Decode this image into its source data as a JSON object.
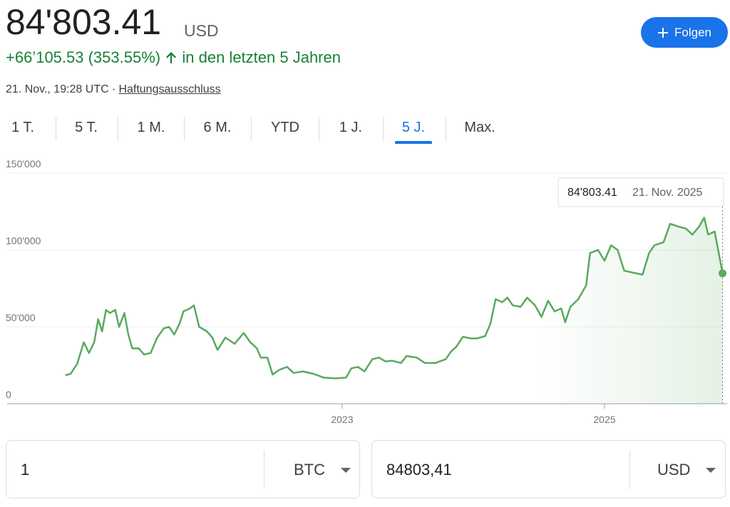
{
  "header": {
    "price": "84'803.41",
    "currency": "USD",
    "change": "+66’105.53 (353.55%)",
    "change_suffix": "in den letzten 5 Jahren",
    "timestamp": "21. Nov., 19:28 UTC ·",
    "disclaimer": "Haftungsausschluss",
    "follow": "Folgen"
  },
  "tabs": [
    "1 T.",
    "5 T.",
    "1 M.",
    "6 M.",
    "YTD",
    "1 J.",
    "5 J.",
    "Max."
  ],
  "active_tab": 6,
  "chart_data": {
    "type": "line",
    "color": "#5aa95e",
    "x": [
      2020.89,
      2020.93,
      2020.98,
      2021.03,
      2021.07,
      2021.11,
      2021.14,
      2021.17,
      2021.2,
      2021.23,
      2021.27,
      2021.3,
      2021.34,
      2021.37,
      2021.4,
      2021.45,
      2021.49,
      2021.54,
      2021.59,
      2021.64,
      2021.68,
      2021.72,
      2021.76,
      2021.79,
      2021.84,
      2021.87,
      2021.91,
      2021.97,
      2022.01,
      2022.05,
      2022.11,
      2022.18,
      2022.25,
      2022.3,
      2022.35,
      2022.38,
      2022.43,
      2022.47,
      2022.52,
      2022.58,
      2022.63,
      2022.7,
      2022.78,
      2022.86,
      2022.95,
      2023.03,
      2023.07,
      2023.12,
      2023.17,
      2023.23,
      2023.28,
      2023.33,
      2023.38,
      2023.45,
      2023.49,
      2023.57,
      2023.63,
      2023.71,
      2023.79,
      2023.83,
      2023.87,
      2023.92,
      2023.98,
      2024.03,
      2024.09,
      2024.13,
      2024.17,
      2024.22,
      2024.26,
      2024.3,
      2024.36,
      2024.41,
      2024.47,
      2024.52,
      2024.57,
      2024.62,
      2024.67,
      2024.7,
      2024.74,
      2024.8,
      2024.86,
      2024.89,
      2024.95,
      2025.0,
      2025.05,
      2025.1,
      2025.15,
      2025.23,
      2025.29,
      2025.34,
      2025.38,
      2025.45,
      2025.5,
      2025.57,
      2025.62,
      2025.67,
      2025.72,
      2025.76,
      2025.79,
      2025.84,
      2025.9
    ],
    "values": [
      18500,
      19500,
      26000,
      40000,
      33000,
      40000,
      55000,
      47000,
      61000,
      59000,
      61000,
      50000,
      59000,
      45000,
      36000,
      36000,
      32000,
      33000,
      43000,
      49000,
      50000,
      45000,
      52000,
      60000,
      62000,
      64000,
      50000,
      47000,
      43000,
      35000,
      43000,
      39000,
      46000,
      40000,
      36000,
      30000,
      30000,
      19000,
      22000,
      24000,
      20000,
      21000,
      19500,
      17000,
      16500,
      17000,
      23000,
      24000,
      21000,
      29000,
      30000,
      27500,
      28000,
      26500,
      31000,
      30000,
      26500,
      26500,
      29000,
      34000,
      37000,
      43500,
      42500,
      42500,
      44000,
      52000,
      68000,
      66000,
      69000,
      64000,
      63000,
      69000,
      64000,
      56500,
      67000,
      60000,
      62000,
      53000,
      63000,
      68000,
      77000,
      98000,
      100000,
      93000,
      103000,
      100000,
      86500,
      85000,
      84000,
      98000,
      103000,
      105000,
      117000,
      115000,
      114000,
      110000,
      115000,
      121000,
      110000,
      112000,
      84803.41
    ],
    "xlim": [
      2020.446,
      2025.935
    ],
    "xticks": [
      2023,
      2025
    ],
    "ylim": [
      0,
      150000
    ],
    "yticks": [
      0,
      {
        "value": 50000,
        "label": "50'000"
      },
      {
        "value": 100000,
        "label": "100'000"
      },
      {
        "value": 150000,
        "label": "150'000"
      }
    ],
    "grid": true,
    "tooltip": {
      "value": "84'803.41",
      "date": "21. Nov. 2025"
    }
  },
  "converter": {
    "from_amount": "1",
    "from_unit": "BTC",
    "to_amount": "84803,41",
    "to_unit": "USD"
  }
}
